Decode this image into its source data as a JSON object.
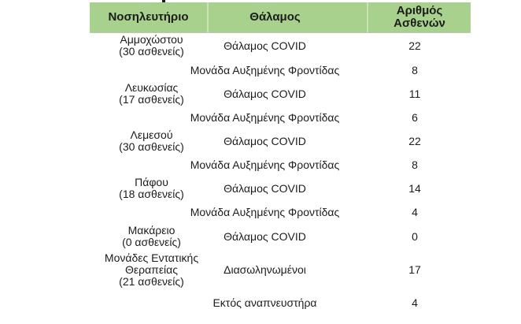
{
  "artifact": {
    "note": "tiny descender of cropped-off title text above table"
  },
  "colors": {
    "header_green": "#a9d18e",
    "header_divider": "#c9e3b4",
    "text": "#1c1c1c",
    "background": "#ffffff"
  },
  "table": {
    "columns": {
      "hospital": "Νοσηλευτήριο",
      "ward": "Θάλαμος",
      "count": "Αριθμός Ασθενών"
    },
    "rows": [
      {
        "hospital": "Αμμοχώστου\n(30 ασθενείς)",
        "ward": "Θάλαμος COVID",
        "count": "22"
      },
      {
        "hospital": "",
        "ward": "Μονάδα Αυξημένης Φροντίδας",
        "count": "8"
      },
      {
        "hospital": "Λευκωσίας\n(17 ασθενείς)",
        "ward": "Θάλαμος COVID",
        "count": "11"
      },
      {
        "hospital": "",
        "ward": "Μονάδα Αυξημένης Φροντίδας",
        "count": "6"
      },
      {
        "hospital": "Λεμεσού\n(30 ασθενείς)",
        "ward": "Θάλαμος COVID",
        "count": "22"
      },
      {
        "hospital": "",
        "ward": "Μονάδα Αυξημένης Φροντίδας",
        "count": "8"
      },
      {
        "hospital": "Πάφου\n(18 ασθενείς)",
        "ward": "Θάλαμος COVID",
        "count": "14"
      },
      {
        "hospital": "",
        "ward": "Μονάδα Αυξημένης Φροντίδας",
        "count": "4"
      },
      {
        "hospital": "Μακάρειο\n(0 ασθενείς)",
        "ward": "Θάλαμος COVID",
        "count": "0"
      },
      {
        "hospital": "Μονάδες Εντατικής\nΘεραπείας\n(21 ασθενείς)",
        "ward": "Διασωληνωμένοι",
        "count": "17"
      },
      {
        "hospital": "",
        "ward": "Εκτός αναπνευστήρα",
        "count": "4"
      }
    ]
  },
  "chart_data": {
    "type": "table",
    "title": "",
    "columns": [
      "Νοσηλευτήριο",
      "Θάλαμος",
      "Αριθμός Ασθενών"
    ],
    "groups": [
      {
        "hospital": "Αμμοχώστου",
        "total_patients": 30,
        "wards": [
          {
            "ward": "Θάλαμος COVID",
            "patients": 22
          },
          {
            "ward": "Μονάδα Αυξημένης Φροντίδας",
            "patients": 8
          }
        ]
      },
      {
        "hospital": "Λευκωσίας",
        "total_patients": 17,
        "wards": [
          {
            "ward": "Θάλαμος COVID",
            "patients": 11
          },
          {
            "ward": "Μονάδα Αυξημένης Φροντίδας",
            "patients": 6
          }
        ]
      },
      {
        "hospital": "Λεμεσού",
        "total_patients": 30,
        "wards": [
          {
            "ward": "Θάλαμος COVID",
            "patients": 22
          },
          {
            "ward": "Μονάδα Αυξημένης Φροντίδας",
            "patients": 8
          }
        ]
      },
      {
        "hospital": "Πάφου",
        "total_patients": 18,
        "wards": [
          {
            "ward": "Θάλαμος COVID",
            "patients": 14
          },
          {
            "ward": "Μονάδα Αυξημένης Φροντίδας",
            "patients": 4
          }
        ]
      },
      {
        "hospital": "Μακάρειο",
        "total_patients": 0,
        "wards": [
          {
            "ward": "Θάλαμος COVID",
            "patients": 0
          }
        ]
      },
      {
        "hospital": "Μονάδες Εντατικής Θεραπείας",
        "total_patients": 21,
        "wards": [
          {
            "ward": "Διασωληνωμένοι",
            "patients": 17
          },
          {
            "ward": "Εκτός αναπνευστήρα",
            "patients": 4
          }
        ]
      }
    ]
  }
}
